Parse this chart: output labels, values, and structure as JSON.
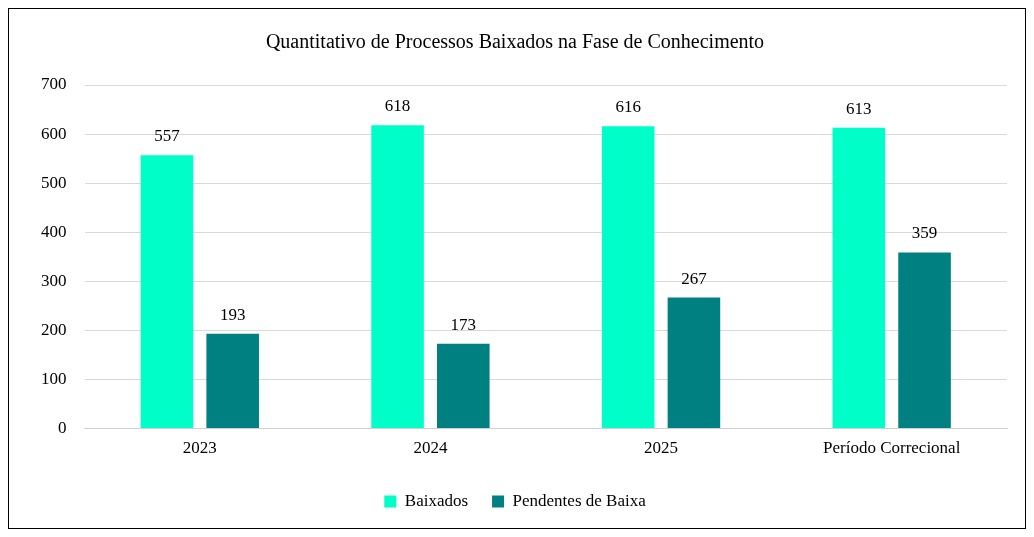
{
  "chart_data": {
    "type": "bar",
    "title": "Quantitativo de Processos Baixados na Fase de Conhecimento",
    "categories": [
      "2023",
      "2024",
      "2025",
      "Período Correcional"
    ],
    "series": [
      {
        "name": "Baixados",
        "color": "#00ffc8",
        "values": [
          557,
          618,
          616,
          613
        ]
      },
      {
        "name": "Pendentes de Baixa",
        "color": "#008080",
        "values": [
          193,
          173,
          267,
          359
        ]
      }
    ],
    "ylim": [
      0,
      700
    ],
    "yticks": [
      0,
      100,
      200,
      300,
      400,
      500,
      600,
      700
    ],
    "grid": "y",
    "legend": "bottom",
    "data_labels": true
  }
}
